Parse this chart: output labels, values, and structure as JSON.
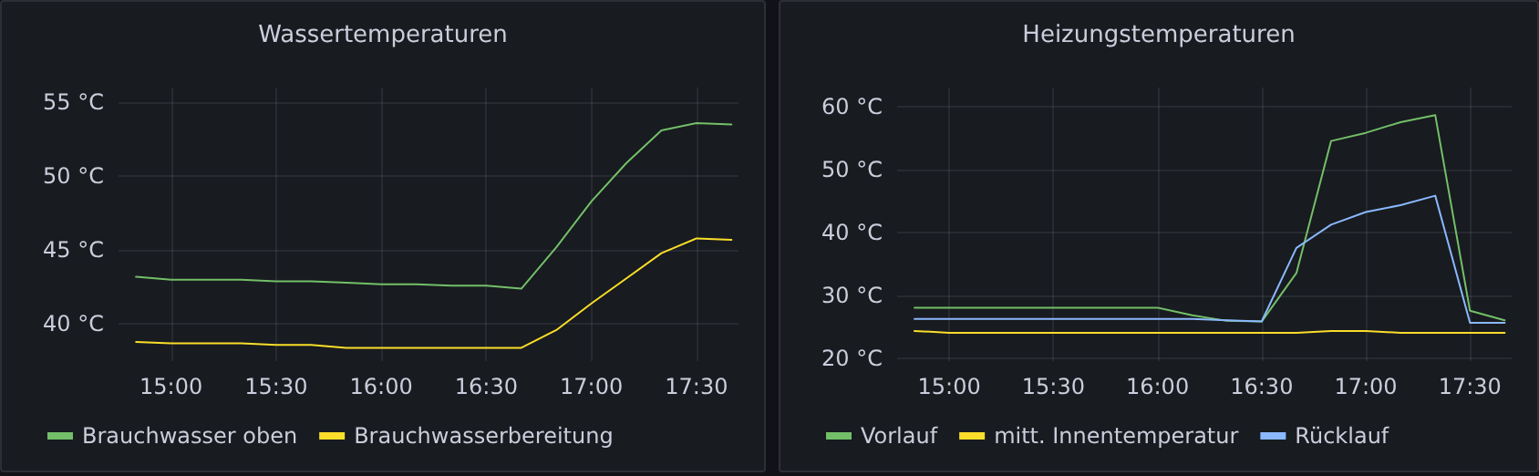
{
  "chart_data": [
    {
      "type": "line",
      "title": "Wassertemperaturen",
      "x": [
        14.8333,
        15,
        15.1667,
        15.3333,
        15.5,
        15.6667,
        15.8333,
        16,
        16.1667,
        16.3333,
        16.5,
        16.6667,
        16.8333,
        17,
        17.1667,
        17.3333,
        17.5,
        17.6667
      ],
      "series": [
        {
          "name": "Brauchwasser oben",
          "color": "#73bf69",
          "values": [
            43.2,
            43.0,
            43.0,
            43.0,
            42.9,
            42.9,
            42.8,
            42.7,
            42.7,
            42.6,
            42.6,
            42.4,
            45.2,
            48.3,
            50.9,
            53.1,
            53.6,
            53.5
          ]
        },
        {
          "name": "Brauchwasserbereitung",
          "color": "#fade2a",
          "values": [
            38.8,
            38.7,
            38.7,
            38.7,
            38.6,
            38.6,
            38.4,
            38.4,
            38.4,
            38.4,
            38.4,
            38.4,
            39.6,
            41.4,
            43.1,
            44.8,
            45.8,
            45.7
          ]
        }
      ],
      "xlim": [
        14.75,
        17.7
      ],
      "xticks": [
        {
          "value": 15,
          "label": "15:00"
        },
        {
          "value": 15.5,
          "label": "15:30"
        },
        {
          "value": 16,
          "label": "16:00"
        },
        {
          "value": 16.5,
          "label": "16:30"
        },
        {
          "value": 17,
          "label": "17:00"
        },
        {
          "value": 17.5,
          "label": "17:30"
        }
      ],
      "ylim": [
        37.5,
        56
      ],
      "yticks": [
        {
          "value": 40,
          "label": "40 °C"
        },
        {
          "value": 45,
          "label": "45 °C"
        },
        {
          "value": 50,
          "label": "50 °C"
        },
        {
          "value": 55,
          "label": "55 °C"
        }
      ],
      "grid": true,
      "legend": "bottom left",
      "marker": "none",
      "line_style": "solid"
    },
    {
      "type": "line",
      "title": "Heizungstemperaturen",
      "x": [
        14.8333,
        15,
        15.1667,
        15.3333,
        15.5,
        15.6667,
        15.8333,
        16,
        16.1667,
        16.3333,
        16.5,
        16.6667,
        16.8333,
        17,
        17.1667,
        17.3333,
        17.5,
        17.6667
      ],
      "series": [
        {
          "name": "Vorlauf",
          "color": "#73bf69",
          "values": [
            28,
            28,
            28,
            28,
            28,
            28,
            28,
            28,
            26.8,
            25.9,
            25.8,
            33.5,
            54.5,
            55.8,
            57.5,
            58.6,
            27.5,
            26
          ]
        },
        {
          "name": "mitt. Innentemperatur",
          "color": "#fade2a",
          "values": [
            24.3,
            24,
            24,
            24,
            24,
            24,
            24,
            24,
            24,
            24,
            24,
            24,
            24.3,
            24.3,
            24,
            24,
            24,
            24
          ]
        },
        {
          "name": "Rücklauf",
          "color": "#8ab8ff",
          "values": [
            26.2,
            26.2,
            26.2,
            26.2,
            26.2,
            26.2,
            26.2,
            26.2,
            26.2,
            26.0,
            25.8,
            37.5,
            41.2,
            43.2,
            44.3,
            45.8,
            25.6,
            25.6
          ]
        }
      ],
      "xlim": [
        14.75,
        17.7
      ],
      "xticks": [
        {
          "value": 15,
          "label": "15:00"
        },
        {
          "value": 15.5,
          "label": "15:30"
        },
        {
          "value": 16,
          "label": "16:00"
        },
        {
          "value": 16.5,
          "label": "16:30"
        },
        {
          "value": 17,
          "label": "17:00"
        },
        {
          "value": 17.5,
          "label": "17:30"
        }
      ],
      "ylim": [
        19.5,
        63
      ],
      "yticks": [
        {
          "value": 20,
          "label": "20 °C"
        },
        {
          "value": 30,
          "label": "30 °C"
        },
        {
          "value": 40,
          "label": "40 °C"
        },
        {
          "value": 50,
          "label": "50 °C"
        },
        {
          "value": 60,
          "label": "60 °C"
        }
      ],
      "grid": true,
      "legend": "bottom left",
      "marker": "none",
      "line_style": "solid"
    }
  ]
}
